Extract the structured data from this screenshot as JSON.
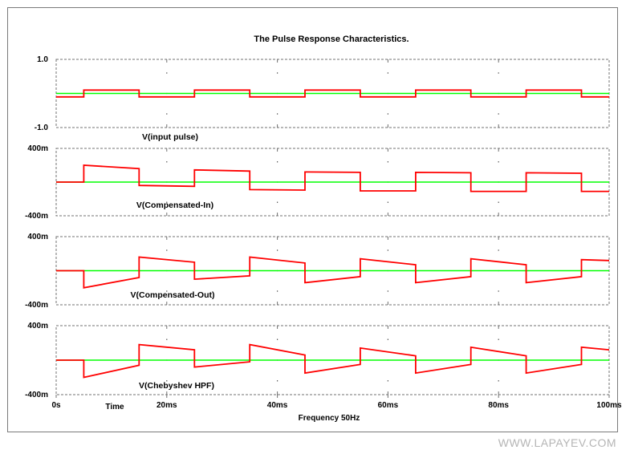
{
  "chart_data": {
    "type": "line",
    "title": "The Pulse Response Characteristics.",
    "x_axis": {
      "label": "Frequency 50Hz",
      "extra_label": "Time",
      "range": [
        0,
        0.1
      ],
      "ticks": [
        0,
        0.02,
        0.04,
        0.06,
        0.08,
        0.1
      ],
      "tick_labels": [
        "0s",
        "20ms",
        "40ms",
        "60ms",
        "80ms",
        "100ms"
      ],
      "grid": "dashed"
    },
    "panels": [
      {
        "name": "V(input pulse)",
        "ylim": [
          -1,
          1
        ],
        "tick_labels": [
          "1.0",
          "-1.0"
        ],
        "baseline": 0,
        "series": {
          "x": [
            0,
            0.005,
            0.005,
            0.015,
            0.015,
            0.025,
            0.025,
            0.035,
            0.035,
            0.045,
            0.045,
            0.055,
            0.055,
            0.065,
            0.065,
            0.075,
            0.075,
            0.085,
            0.085,
            0.095,
            0.095,
            0.1
          ],
          "y": [
            -0.1,
            -0.1,
            0.1,
            0.1,
            -0.1,
            -0.1,
            0.1,
            0.1,
            -0.1,
            -0.1,
            0.1,
            0.1,
            -0.1,
            -0.1,
            0.1,
            0.1,
            -0.1,
            -0.1,
            0.1,
            0.1,
            -0.1,
            -0.1
          ]
        }
      },
      {
        "name": "V(Compensated-In)",
        "ylim": [
          -0.4,
          0.4
        ],
        "tick_labels": [
          "400m",
          "-400m"
        ],
        "baseline": 0,
        "series": {
          "x": [
            0,
            0.005,
            0.005,
            0.015,
            0.015,
            0.025,
            0.025,
            0.035,
            0.035,
            0.045,
            0.045,
            0.055,
            0.055,
            0.065,
            0.065,
            0.075,
            0.075,
            0.085,
            0.085,
            0.095,
            0.095,
            0.1
          ],
          "y": [
            0,
            0,
            0.2,
            0.16,
            -0.04,
            -0.05,
            0.145,
            0.13,
            -0.09,
            -0.095,
            0.12,
            0.115,
            -0.105,
            -0.105,
            0.115,
            0.11,
            -0.11,
            -0.11,
            0.11,
            0.105,
            -0.11,
            -0.11
          ]
        }
      },
      {
        "name": "V(Compensated-Out)",
        "ylim": [
          -0.4,
          0.4
        ],
        "tick_labels": [
          "400m",
          "-400m"
        ],
        "baseline": 0,
        "series": {
          "x": [
            0,
            0.005,
            0.005,
            0.015,
            0.015,
            0.025,
            0.025,
            0.035,
            0.035,
            0.045,
            0.045,
            0.055,
            0.055,
            0.065,
            0.065,
            0.075,
            0.075,
            0.085,
            0.085,
            0.095,
            0.095,
            0.1
          ],
          "y": [
            0,
            0,
            -0.2,
            -0.08,
            0.16,
            0.1,
            -0.1,
            -0.06,
            0.16,
            0.09,
            -0.14,
            -0.07,
            0.14,
            0.07,
            -0.14,
            -0.07,
            0.14,
            0.07,
            -0.14,
            -0.07,
            0.13,
            0.12
          ]
        }
      },
      {
        "name": "V(Chebyshev HPF)",
        "ylim": [
          -0.4,
          0.4
        ],
        "tick_labels": [
          "400m",
          "-400m"
        ],
        "baseline": 0,
        "series": {
          "x": [
            0,
            0.005,
            0.005,
            0.015,
            0.015,
            0.025,
            0.025,
            0.035,
            0.035,
            0.045,
            0.045,
            0.055,
            0.055,
            0.065,
            0.065,
            0.075,
            0.075,
            0.085,
            0.085,
            0.095,
            0.095,
            0.1
          ],
          "y": [
            0,
            0,
            -0.2,
            -0.06,
            0.18,
            0.12,
            -0.08,
            -0.02,
            0.18,
            0.06,
            -0.15,
            -0.05,
            0.14,
            0.05,
            -0.15,
            -0.05,
            0.15,
            0.05,
            -0.15,
            -0.05,
            0.15,
            0.12
          ]
        }
      }
    ],
    "colors": {
      "signal": "#ff0000",
      "reference": "#00ff00",
      "grid": "#707070"
    }
  },
  "watermark": "WWW.LAPAYEV.COM"
}
